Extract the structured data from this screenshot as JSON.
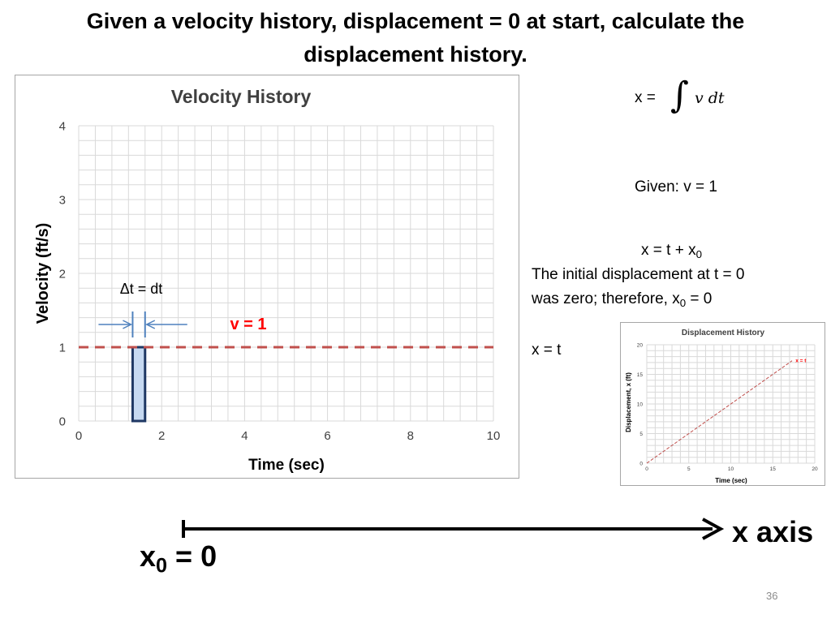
{
  "slide": {
    "title": "Given a velocity history, displacement = 0 at start, calculate the displacement history.",
    "slide_number": "36"
  },
  "formula": {
    "lhs": "x =",
    "integrand": "v dt",
    "given": "Given: v = 1",
    "general_solution_main": "x = t + x",
    "general_solution_sub": "0",
    "explanation_line1": "The initial displacement at t = 0",
    "explanation_line2_pre": "was zero; therefore, x",
    "explanation_line2_sub": "0",
    "explanation_line2_post": " = 0",
    "result": "x = t"
  },
  "axis_diagram": {
    "axis_label": "x axis",
    "origin_label_main": "x",
    "origin_label_sub": "0",
    "origin_label_post": " = 0",
    "line_color": "#000000"
  },
  "chart_data": [
    {
      "type": "line",
      "title": "Velocity History",
      "xlabel": "Time (sec)",
      "ylabel": "Velocity (ft/s)",
      "xlim": [
        0,
        10
      ],
      "ylim": [
        0,
        4
      ],
      "x_ticks": [
        0,
        2,
        4,
        6,
        8,
        10
      ],
      "y_ticks": [
        0,
        1,
        2,
        3,
        4
      ],
      "grid": true,
      "series": [
        {
          "name": "v = 1",
          "color": "#c0504d",
          "style": "dashed",
          "x": [
            0,
            10
          ],
          "y": [
            1,
            1
          ]
        }
      ],
      "highlight_bar": {
        "x_start": 1.3,
        "x_end": 1.6,
        "value": 1,
        "fill": "#c6d9f1",
        "stroke": "#1f3864"
      },
      "annotations": [
        {
          "text": "Δt = dt"
        },
        {
          "text": "v = 1",
          "color": "#ff0000"
        }
      ],
      "arrow_color": "#4f81bd"
    },
    {
      "type": "line",
      "title": "Displacement History",
      "xlabel": "Time (sec)",
      "ylabel": "Displacement, x (ft)",
      "xlim": [
        0,
        20
      ],
      "ylim": [
        0,
        20
      ],
      "x_ticks": [
        0,
        5,
        10,
        15,
        20
      ],
      "y_ticks": [
        0,
        5,
        10,
        15,
        20
      ],
      "grid": true,
      "series": [
        {
          "name": "x = t",
          "color": "#c0504d",
          "style": "dashed",
          "x": [
            0,
            17.3
          ],
          "y": [
            0,
            17.3
          ]
        }
      ],
      "annotations": [
        {
          "text": "x = t",
          "color": "#ff0000"
        }
      ]
    }
  ]
}
